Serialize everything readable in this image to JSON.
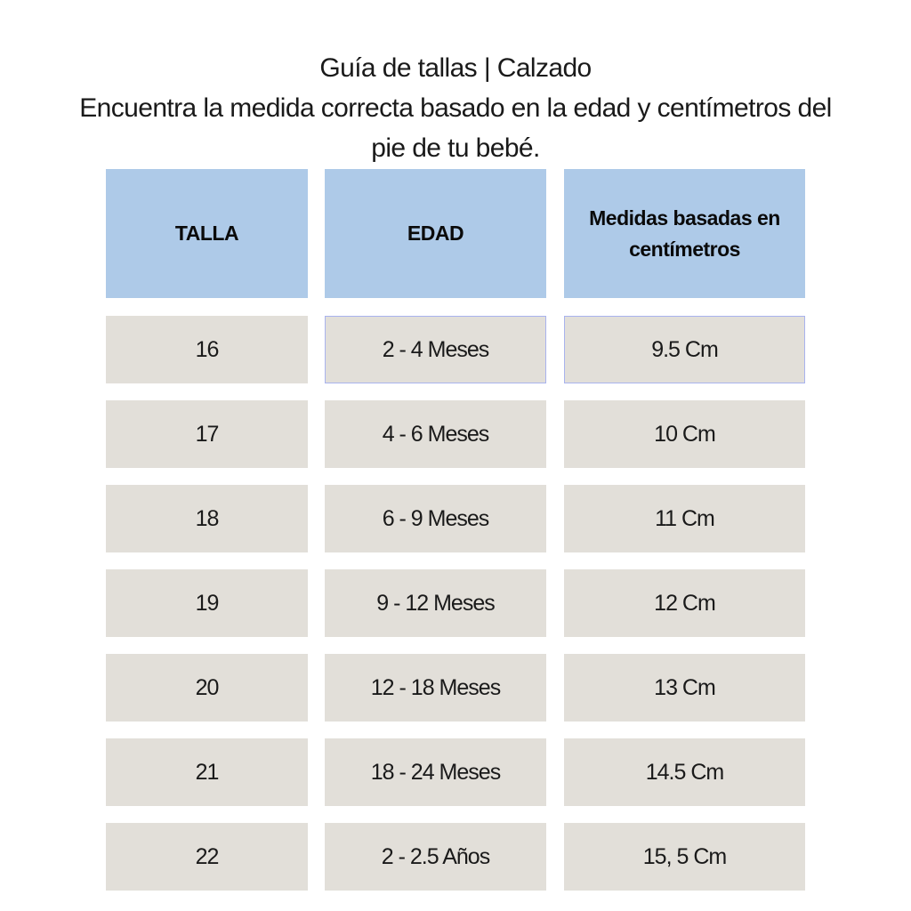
{
  "title": {
    "line1": "Guía de tallas | Calzado",
    "line2": "Encuentra la medida correcta basado en la edad  y centímetros del",
    "line3": "pie de tu bebé."
  },
  "table": {
    "headers": [
      "TALLA",
      "EDAD",
      "Medidas basadas en centímetros"
    ],
    "header_color": "#aecae8",
    "cell_color": "#e2dfd9",
    "rows": [
      [
        "16",
        "2 - 4 Meses",
        "9.5 Cm"
      ],
      [
        "17",
        "4 - 6 Meses",
        "10 Cm"
      ],
      [
        "18",
        "6 - 9 Meses",
        "11 Cm"
      ],
      [
        "19",
        "9 - 12 Meses",
        "12 Cm"
      ],
      [
        "20",
        "12 - 18 Meses",
        "13 Cm"
      ],
      [
        "21",
        "18 - 24 Meses",
        "14.5 Cm"
      ],
      [
        "22",
        "2 - 2.5 Años",
        "15, 5 Cm"
      ]
    ]
  }
}
